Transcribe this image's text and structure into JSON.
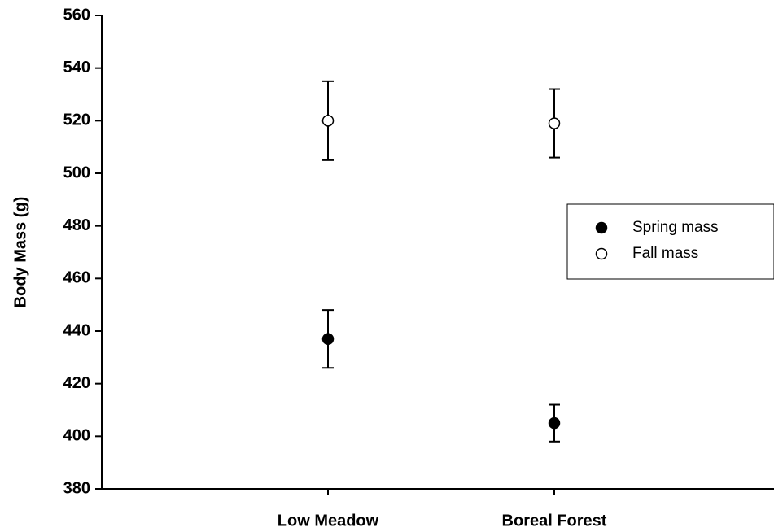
{
  "chart_data": {
    "type": "scatter",
    "ylabel": "Body Mass (g)",
    "categories": [
      "Low Meadow",
      "Boreal Forest"
    ],
    "series": [
      {
        "name": "Spring mass",
        "color": "#000000",
        "marker": "filled",
        "values": [
          437,
          405
        ],
        "errors": [
          11,
          7
        ]
      },
      {
        "name": "Fall mass",
        "color": "#000000",
        "marker": "open",
        "values": [
          520,
          519
        ],
        "errors": [
          15,
          13
        ]
      }
    ],
    "ylim": [
      380,
      560
    ],
    "yticks": [
      380,
      400,
      420,
      440,
      460,
      480,
      500,
      520,
      540,
      560
    ],
    "grid": false,
    "legend": "right"
  }
}
